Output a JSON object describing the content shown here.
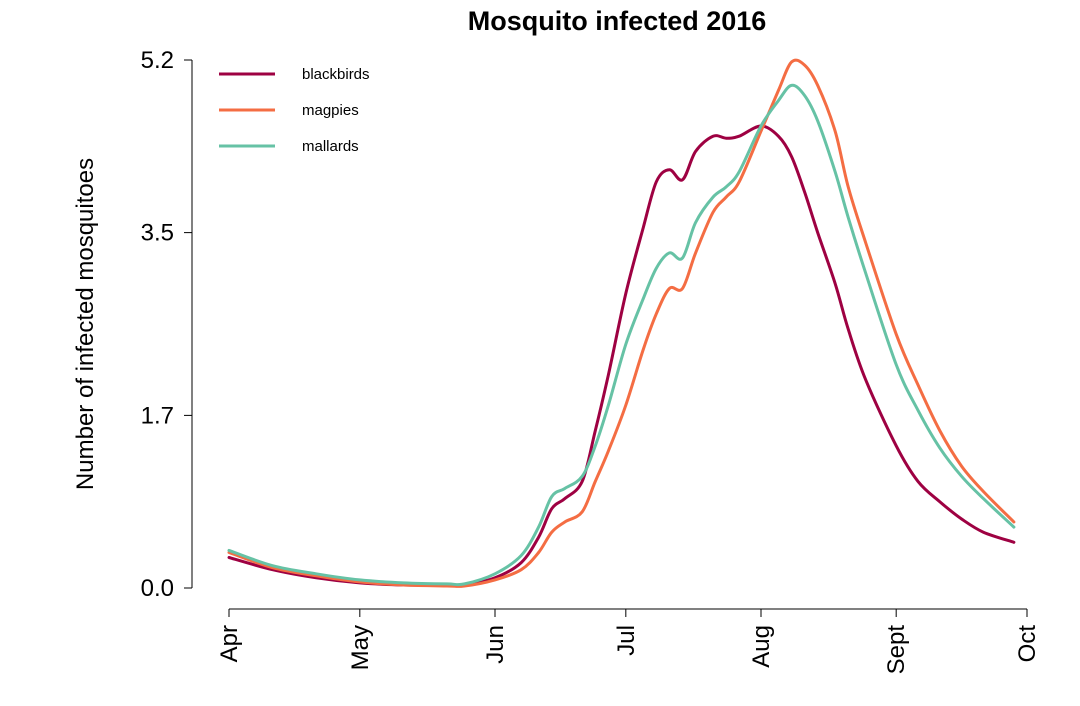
{
  "chart_data": {
    "type": "line",
    "title": "Mosquito infected 2016",
    "ylabel": "Number of infected mosquitoes",
    "xlabel": "",
    "x_tick_labels": [
      "Apr",
      "May",
      "Jun",
      "Jul",
      "Aug",
      "Sept",
      "Oct"
    ],
    "y_ticks": [
      0.0,
      1.7,
      3.5,
      5.2
    ],
    "y_tick_labels": [
      "0.0",
      "1.7",
      "3.5",
      "5.2"
    ],
    "ylim": [
      0,
      5.2
    ],
    "xlim": [
      "2016-04-01",
      "2016-10-01"
    ],
    "grid": false,
    "legend_position": "top-left",
    "x": [
      "2016-04-01",
      "2016-04-11",
      "2016-04-21",
      "2016-05-01",
      "2016-05-11",
      "2016-05-21",
      "2016-05-25",
      "2016-06-01",
      "2016-06-07",
      "2016-06-11",
      "2016-06-14",
      "2016-06-17",
      "2016-06-21",
      "2016-06-24",
      "2016-06-27",
      "2016-07-01",
      "2016-07-05",
      "2016-07-08",
      "2016-07-11",
      "2016-07-14",
      "2016-07-17",
      "2016-07-21",
      "2016-07-24",
      "2016-07-27",
      "2016-08-01",
      "2016-08-05",
      "2016-08-08",
      "2016-08-11",
      "2016-08-14",
      "2016-08-18",
      "2016-08-21",
      "2016-08-25",
      "2016-09-01",
      "2016-09-06",
      "2016-09-11",
      "2016-09-16",
      "2016-09-21",
      "2016-09-28"
    ],
    "series": [
      {
        "name": "blackbirds",
        "color": "#9e0142",
        "values": [
          0.3,
          0.18,
          0.1,
          0.05,
          0.03,
          0.03,
          0.03,
          0.1,
          0.25,
          0.5,
          0.78,
          0.88,
          1.05,
          1.55,
          2.1,
          2.9,
          3.55,
          4.0,
          4.12,
          4.02,
          4.3,
          4.45,
          4.43,
          4.45,
          4.55,
          4.45,
          4.25,
          3.9,
          3.5,
          3.0,
          2.55,
          2.05,
          1.4,
          1.05,
          0.85,
          0.68,
          0.55,
          0.45
        ]
      },
      {
        "name": "magpies",
        "color": "#f46d43",
        "values": [
          0.35,
          0.2,
          0.12,
          0.06,
          0.03,
          0.02,
          0.02,
          0.08,
          0.18,
          0.35,
          0.55,
          0.65,
          0.75,
          1.05,
          1.35,
          1.8,
          2.35,
          2.7,
          2.95,
          2.95,
          3.3,
          3.7,
          3.85,
          4.0,
          4.5,
          4.9,
          5.18,
          5.15,
          4.95,
          4.5,
          3.95,
          3.4,
          2.5,
          2.0,
          1.55,
          1.2,
          0.95,
          0.65
        ]
      },
      {
        "name": "mallards",
        "color": "#66c2a5",
        "values": [
          0.37,
          0.22,
          0.14,
          0.08,
          0.05,
          0.04,
          0.04,
          0.14,
          0.32,
          0.6,
          0.9,
          0.98,
          1.1,
          1.4,
          1.8,
          2.4,
          2.85,
          3.15,
          3.3,
          3.25,
          3.6,
          3.85,
          3.95,
          4.1,
          4.55,
          4.8,
          4.95,
          4.85,
          4.6,
          4.1,
          3.65,
          3.1,
          2.2,
          1.75,
          1.38,
          1.1,
          0.88,
          0.6
        ]
      }
    ]
  }
}
